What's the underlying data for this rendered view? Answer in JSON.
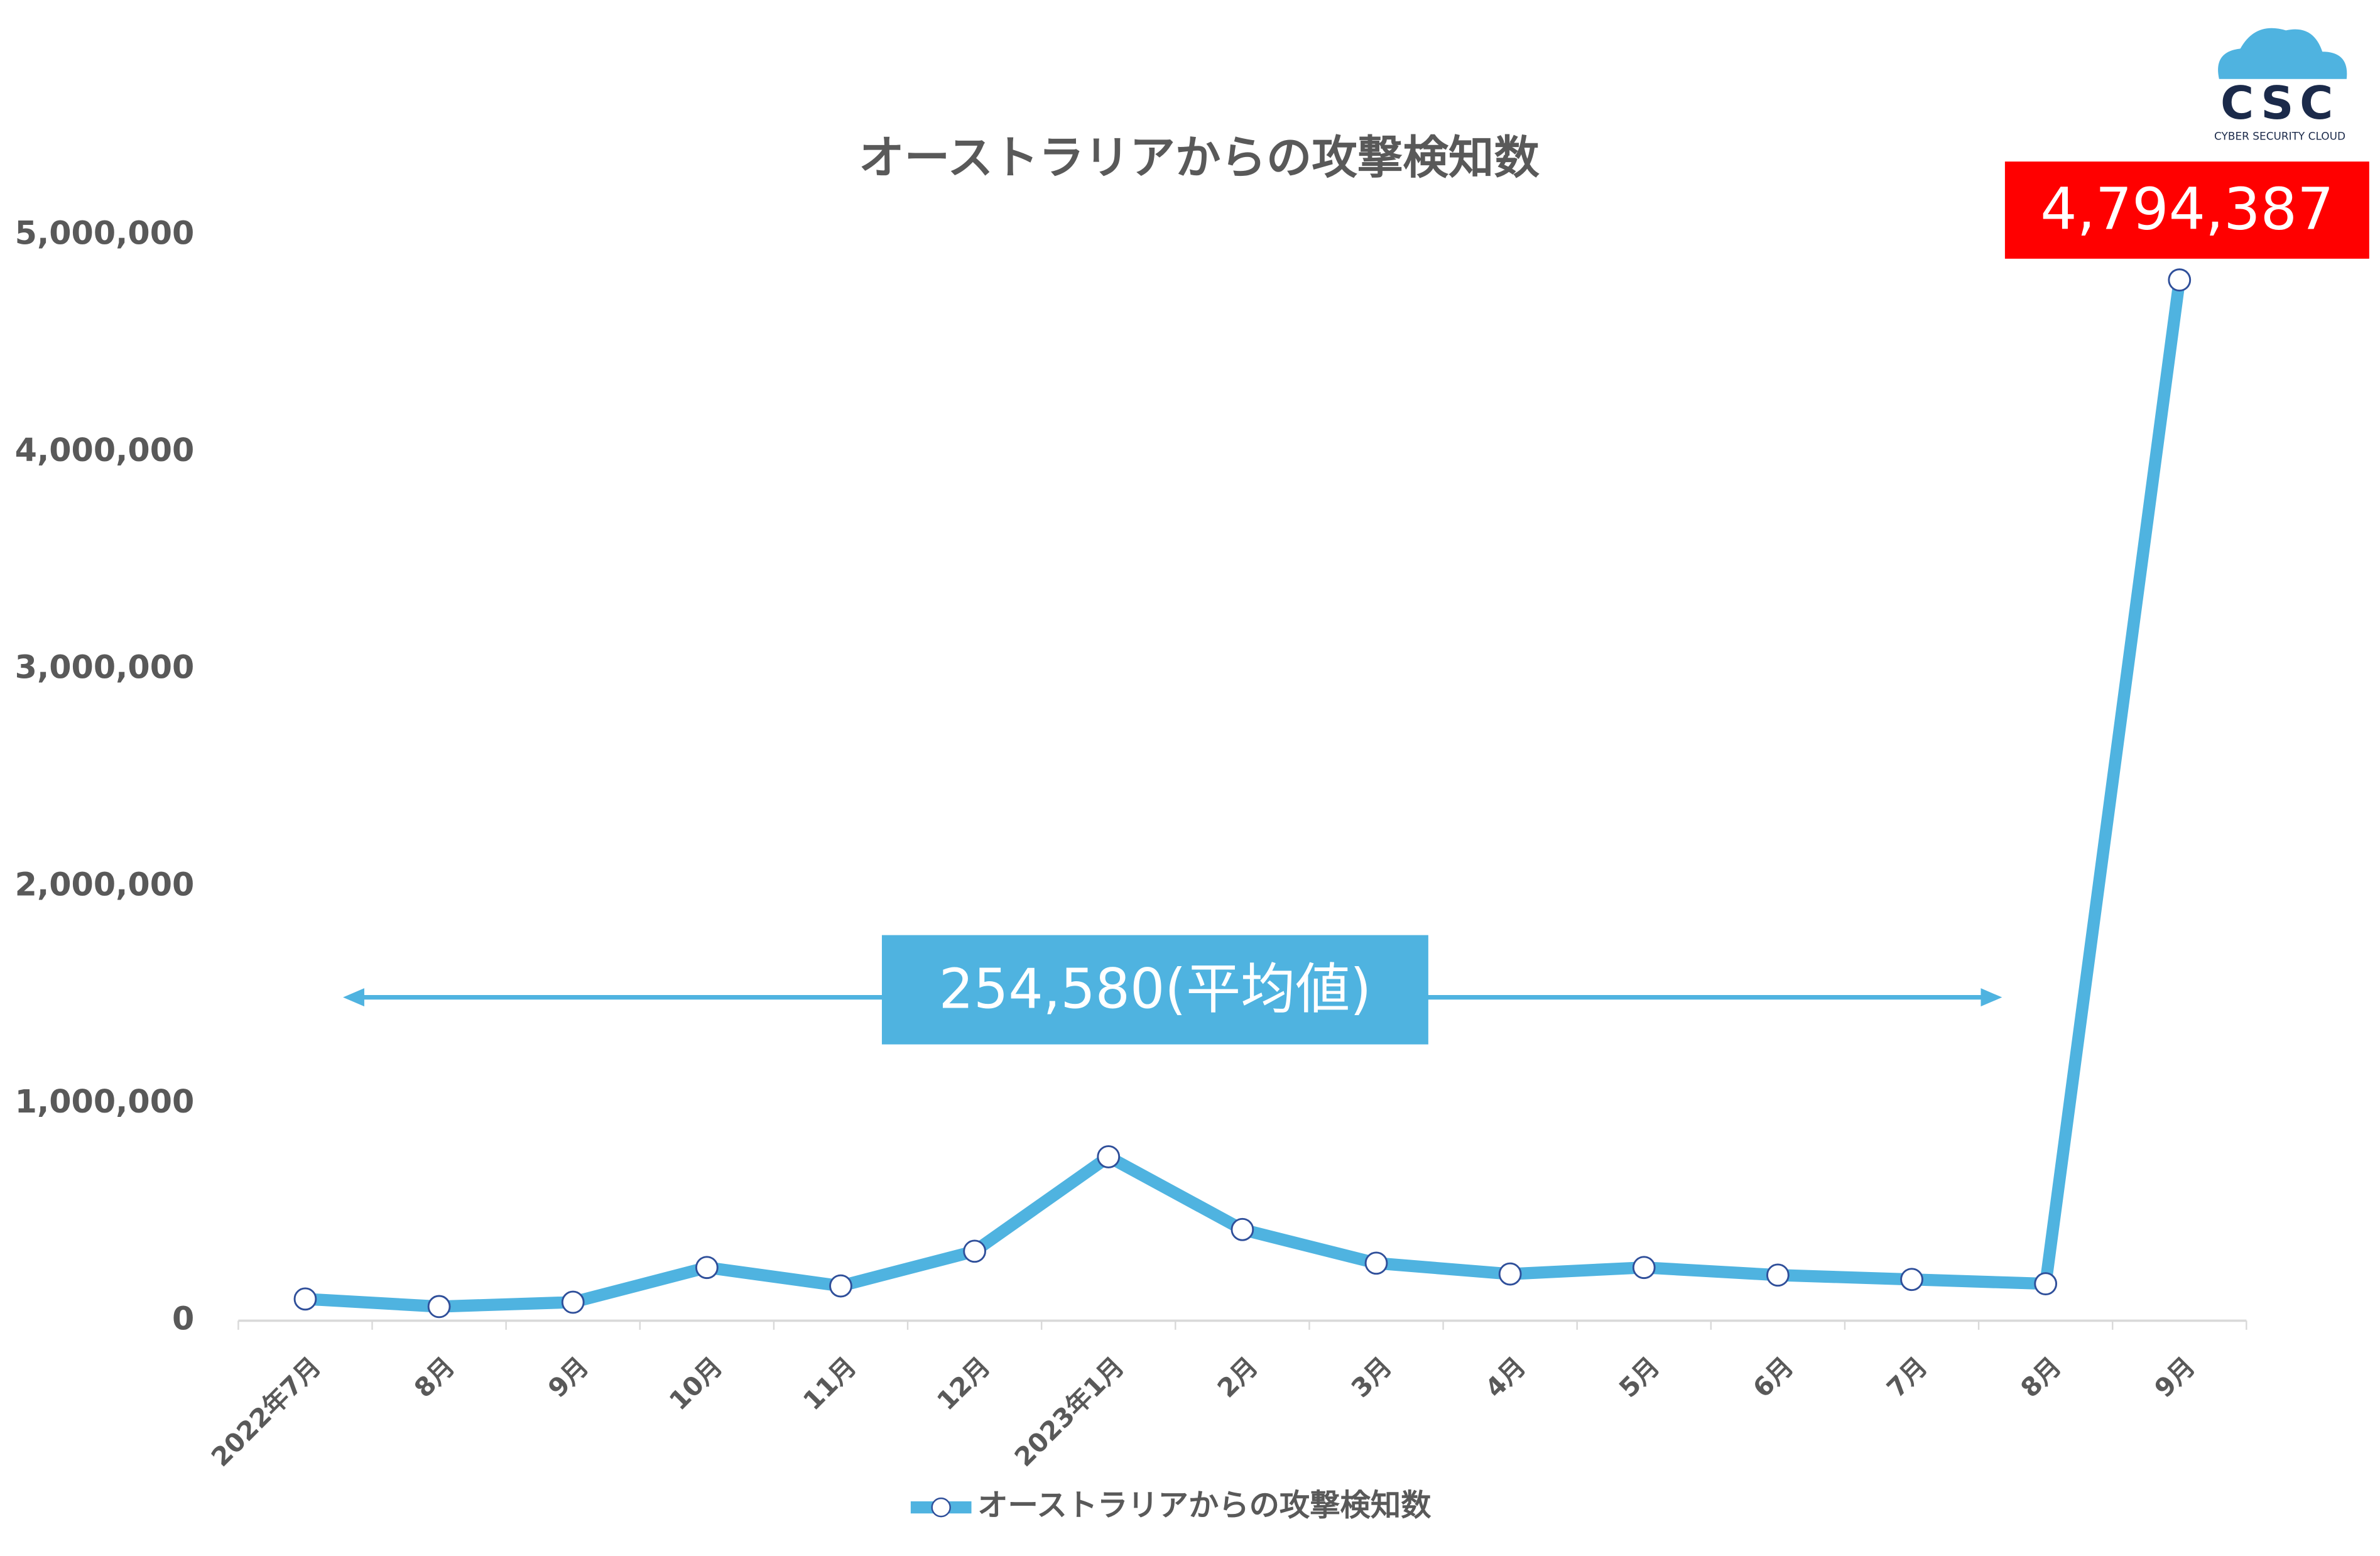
{
  "chart_data": {
    "type": "line",
    "title": "オーストラリアからの攻撃検知数",
    "categories": [
      "2022年7月",
      "8月",
      "9月",
      "10月",
      "11月",
      "12月",
      "2023年1月",
      "2月",
      "3月",
      "4月",
      "5月",
      "6月",
      "7月",
      "8月",
      "9月"
    ],
    "series": [
      {
        "name": "オーストラリアからの攻撃検知数",
        "color": "#4fb3e0",
        "values": [
          100000,
          65000,
          85000,
          245000,
          160000,
          320000,
          755000,
          420000,
          265000,
          215000,
          245000,
          210000,
          190000,
          170000,
          4794387
        ],
        "value_labels": [
          null,
          null,
          null,
          null,
          null,
          null,
          null,
          null,
          null,
          null,
          null,
          null,
          null,
          null,
          "4,794,387"
        ]
      }
    ],
    "ylim": [
      0,
      5000000
    ],
    "yticks": [
      0,
      {
        "value": 1000000,
        "label": "1,000,000"
      },
      {
        "value": 2000000,
        "label": "2,000,000"
      },
      {
        "value": 3000000,
        "label": "3,000,000"
      },
      {
        "value": 4000000,
        "label": "4,000,000"
      },
      {
        "value": 5000000,
        "label": "5,000,000"
      }
    ],
    "grid": false,
    "legend": "bottom",
    "annotation": "254,580(平均値)",
    "label_color": "#ff0000"
  },
  "logo": {
    "mark": "CSC",
    "text": "CYBER SECURITY CLOUD"
  }
}
